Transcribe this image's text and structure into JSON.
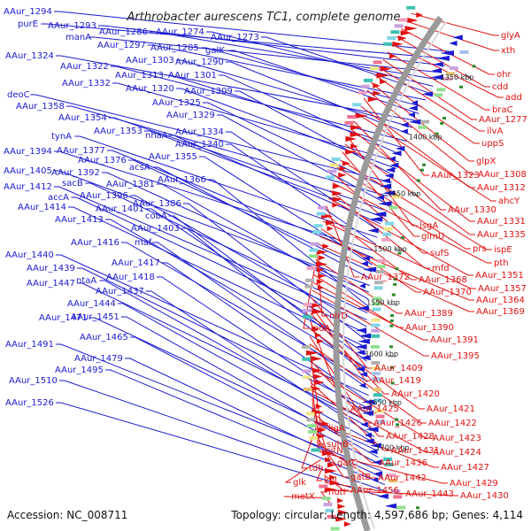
{
  "title": "Arthrobacter aurescens TC1, complete genome",
  "footer": {
    "accession": "Accession: NC_008711",
    "summary": "Topology: circular; Length: 4,597,686 bp; Genes: 4,114"
  },
  "ticks": [
    {
      "label": "1350 kbp"
    },
    {
      "label": "1400 kbp"
    },
    {
      "label": "1450 kbp"
    },
    {
      "label": "1500 kbp"
    },
    {
      "label": "1550 kbp"
    },
    {
      "label": "1600 kbp"
    },
    {
      "label": "1650 kbp"
    },
    {
      "label": "1700 kbp"
    }
  ],
  "colors": {
    "left": "#1a1ad0",
    "right": "#e01010",
    "ring": "#9a9a9a"
  },
  "left_labels": [
    {
      "text": "AAur_1294"
    },
    {
      "text": "purE"
    },
    {
      "text": "AAur_1293"
    },
    {
      "text": "manA"
    },
    {
      "text": "AAur_1286"
    },
    {
      "text": "AAur_1274"
    },
    {
      "text": "AAur_1273"
    },
    {
      "text": "AAur_1297"
    },
    {
      "text": "AAur_1285"
    },
    {
      "text": "galK"
    },
    {
      "text": "AAur_1324"
    },
    {
      "text": "AAur_1303"
    },
    {
      "text": "AAur_1290"
    },
    {
      "text": "AAur_1322"
    },
    {
      "text": "AAur_1313"
    },
    {
      "text": "AAur_1301"
    },
    {
      "text": "AAur_1332"
    },
    {
      "text": "AAur_1320"
    },
    {
      "text": "AAur_1309"
    },
    {
      "text": "deoC"
    },
    {
      "text": "AAur_1325"
    },
    {
      "text": "AAur_1358"
    },
    {
      "text": "AAur_1329"
    },
    {
      "text": "AAur_1354"
    },
    {
      "text": "AAur_1353"
    },
    {
      "text": "nhaA"
    },
    {
      "text": "AAur_1334"
    },
    {
      "text": "tynA"
    },
    {
      "text": "AAur_1340"
    },
    {
      "text": "AAur_1394"
    },
    {
      "text": "AAur_1377"
    },
    {
      "text": "AAur_1355"
    },
    {
      "text": "AAur_1376"
    },
    {
      "text": "acsA"
    },
    {
      "text": "AAur_1405"
    },
    {
      "text": "AAur_1392"
    },
    {
      "text": "AAur_1381"
    },
    {
      "text": "AAur_1366"
    },
    {
      "text": "sacB"
    },
    {
      "text": "AAur_1412"
    },
    {
      "text": "AAur_1396"
    },
    {
      "text": "accA"
    },
    {
      "text": "AAur_1386"
    },
    {
      "text": "AAur_1414"
    },
    {
      "text": "AAur_1401"
    },
    {
      "text": "cobA"
    },
    {
      "text": "AAur_1413"
    },
    {
      "text": "AAur_1403"
    },
    {
      "text": "AAur_1416"
    },
    {
      "text": "maf"
    },
    {
      "text": "AAur_1440"
    },
    {
      "text": "AAur_1417"
    },
    {
      "text": "AAur_1439"
    },
    {
      "text": "AAur_1418"
    },
    {
      "text": "AAur_1447"
    },
    {
      "text": "ntaA"
    },
    {
      "text": "AAur_1437"
    },
    {
      "text": "AAur_1444"
    },
    {
      "text": "AAur_1471"
    },
    {
      "text": "AAur_1451"
    },
    {
      "text": "AAur_1465"
    },
    {
      "text": "AAur_1491"
    },
    {
      "text": "AAur_1479"
    },
    {
      "text": "AAur_1495"
    },
    {
      "text": "AAur_1510"
    },
    {
      "text": "AAur_1526"
    }
  ],
  "right_labels": [
    {
      "text": "glyA"
    },
    {
      "text": "xth"
    },
    {
      "text": "ohr"
    },
    {
      "text": "cdd"
    },
    {
      "text": "add"
    },
    {
      "text": "braC"
    },
    {
      "text": "AAur_1277"
    },
    {
      "text": "ilvA"
    },
    {
      "text": "uppS"
    },
    {
      "text": "glpX"
    },
    {
      "text": "AAur_1308"
    },
    {
      "text": "AAur_1323"
    },
    {
      "text": "AAur_1312"
    },
    {
      "text": "ahcY"
    },
    {
      "text": "AAur_1330"
    },
    {
      "text": "AAur_1331"
    },
    {
      "text": "lsgA"
    },
    {
      "text": "AAur_1335"
    },
    {
      "text": "glmU"
    },
    {
      "text": "ispE"
    },
    {
      "text": "prs"
    },
    {
      "text": "sufS"
    },
    {
      "text": "pth"
    },
    {
      "text": "mfd"
    },
    {
      "text": "AAur_1351"
    },
    {
      "text": "AAur_1372"
    },
    {
      "text": "AAur_1368"
    },
    {
      "text": "AAur_1357"
    },
    {
      "text": "AAur_1370"
    },
    {
      "text": "AAur_1364"
    },
    {
      "text": "AAur_1369"
    },
    {
      "text": "nirD"
    },
    {
      "text": "AAur_1389"
    },
    {
      "text": "lpdA"
    },
    {
      "text": "AAur_1390"
    },
    {
      "text": "AAur_1391"
    },
    {
      "text": "AAur_1395"
    },
    {
      "text": "AAur_1409"
    },
    {
      "text": "AAur_1419"
    },
    {
      "text": "AAur_1420"
    },
    {
      "text": "AAur_1425"
    },
    {
      "text": "AAur_1421"
    },
    {
      "text": "AAur_1426"
    },
    {
      "text": "AAur_1422"
    },
    {
      "text": "ligA"
    },
    {
      "text": "AAur_1428"
    },
    {
      "text": "AAur_1423"
    },
    {
      "text": "suhB"
    },
    {
      "text": "AAur_1431"
    },
    {
      "text": "AAur_1424"
    },
    {
      "text": "citN"
    },
    {
      "text": "gatC"
    },
    {
      "text": "AAur_1436"
    },
    {
      "text": "AAur_1427"
    },
    {
      "text": "tdh"
    },
    {
      "text": "gatB"
    },
    {
      "text": "AAur_1442"
    },
    {
      "text": "AAur_1429"
    },
    {
      "text": "glk"
    },
    {
      "text": "kbl"
    },
    {
      "text": "AAur_1456"
    },
    {
      "text": "AAur_1443"
    },
    {
      "text": "AAur_1430"
    },
    {
      "text": "metX"
    },
    {
      "text": "hutI"
    }
  ]
}
